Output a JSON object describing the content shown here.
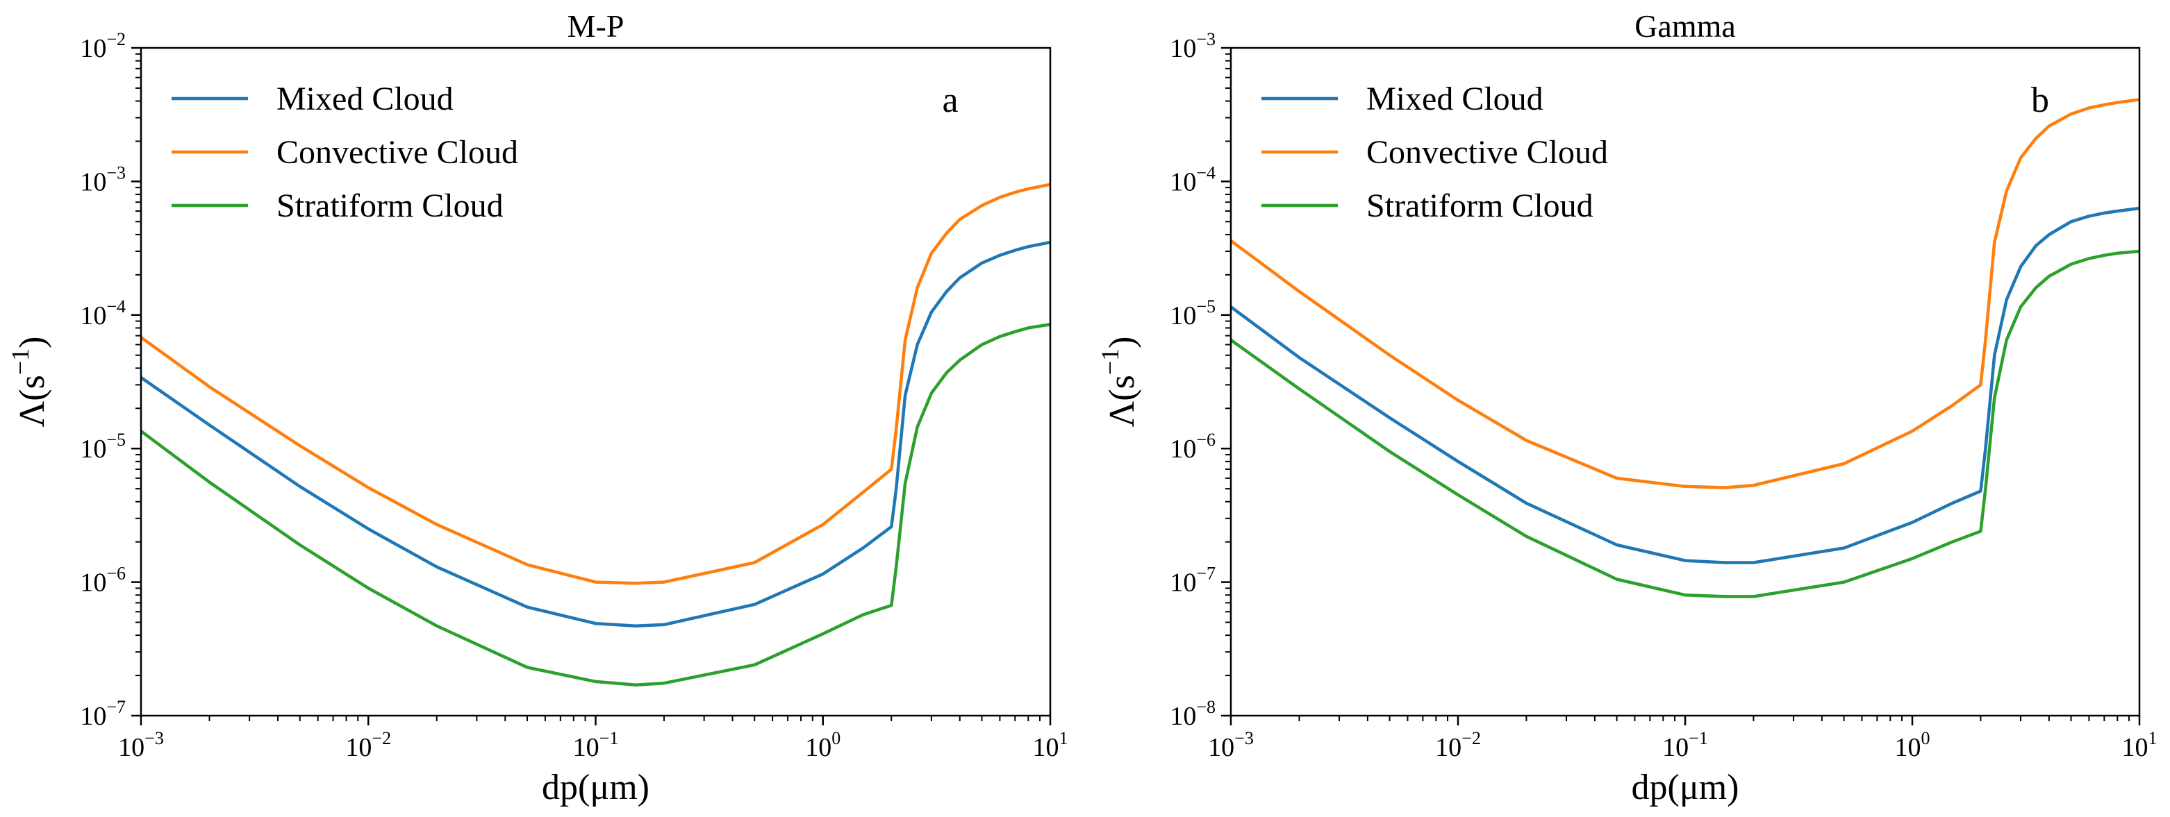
{
  "chart_data": [
    {
      "type": "line",
      "title": "M-P",
      "panel_label": "a",
      "xlabel": "dp(μm)",
      "ylabel_base": "Λ(s",
      "ylabel_sup": "−1",
      "ylabel_close": ")",
      "x_scale": "log",
      "y_scale": "log",
      "xlim": [
        0.001,
        10
      ],
      "ylim": [
        1e-07,
        0.01
      ],
      "x_ticks": [
        {
          "base": "10",
          "exp": "−3"
        },
        {
          "base": "10",
          "exp": "−2"
        },
        {
          "base": "10",
          "exp": "−1"
        },
        {
          "base": "10",
          "exp": "0"
        },
        {
          "base": "10",
          "exp": "1"
        }
      ],
      "y_ticks": [
        {
          "base": "10",
          "exp": "−7"
        },
        {
          "base": "10",
          "exp": "−6"
        },
        {
          "base": "10",
          "exp": "−5"
        },
        {
          "base": "10",
          "exp": "−4"
        },
        {
          "base": "10",
          "exp": "−3"
        },
        {
          "base": "10",
          "exp": "−2"
        }
      ],
      "grid": false,
      "legend_position": "top-left",
      "x": [
        0.001,
        0.002,
        0.005,
        0.01,
        0.02,
        0.05,
        0.1,
        0.15,
        0.2,
        0.5,
        1.0,
        1.5,
        2.0,
        2.1,
        2.3,
        2.6,
        3.0,
        3.5,
        4.0,
        5.0,
        6.0,
        7.0,
        8.0,
        10.0
      ],
      "series": [
        {
          "name": "Mixed Cloud",
          "color": "#1f77b4",
          "values": [
            3.4e-05,
            1.5e-05,
            5.2e-06,
            2.5e-06,
            1.3e-06,
            6.5e-07,
            4.9e-07,
            4.7e-07,
            4.8e-07,
            6.8e-07,
            1.15e-06,
            1.8e-06,
            2.6e-06,
            5e-06,
            2.5e-05,
            6e-05,
            0.000105,
            0.00015,
            0.00019,
            0.000245,
            0.00028,
            0.000305,
            0.000325,
            0.00035
          ]
        },
        {
          "name": "Convective Cloud",
          "color": "#ff7f0e",
          "values": [
            6.8e-05,
            2.9e-05,
            1.05e-05,
            5.1e-06,
            2.7e-06,
            1.35e-06,
            1e-06,
            9.8e-07,
            1e-06,
            1.4e-06,
            2.7e-06,
            4.7e-06,
            7e-06,
            1.4e-05,
            6.5e-05,
            0.00016,
            0.00029,
            0.00041,
            0.00052,
            0.00066,
            0.00076,
            0.00083,
            0.00088,
            0.00095
          ]
        },
        {
          "name": "Stratiform Cloud",
          "color": "#2ca02c",
          "values": [
            1.35e-05,
            5.6e-06,
            1.9e-06,
            9e-07,
            4.7e-07,
            2.3e-07,
            1.8e-07,
            1.7e-07,
            1.75e-07,
            2.4e-07,
            4.1e-07,
            5.7e-07,
            6.7e-07,
            1.3e-06,
            5.5e-06,
            1.45e-05,
            2.6e-05,
            3.7e-05,
            4.6e-05,
            6e-05,
            6.9e-05,
            7.5e-05,
            8e-05,
            8.5e-05
          ]
        }
      ]
    },
    {
      "type": "line",
      "title": "Gamma",
      "panel_label": "b",
      "xlabel": "dp(μm)",
      "ylabel_base": "Λ(s",
      "ylabel_sup": "−1",
      "ylabel_close": ")",
      "x_scale": "log",
      "y_scale": "log",
      "xlim": [
        0.001,
        10
      ],
      "ylim": [
        1e-08,
        0.001
      ],
      "x_ticks": [
        {
          "base": "10",
          "exp": "−3"
        },
        {
          "base": "10",
          "exp": "−2"
        },
        {
          "base": "10",
          "exp": "−1"
        },
        {
          "base": "10",
          "exp": "0"
        },
        {
          "base": "10",
          "exp": "1"
        }
      ],
      "y_ticks": [
        {
          "base": "10",
          "exp": "−8"
        },
        {
          "base": "10",
          "exp": "−7"
        },
        {
          "base": "10",
          "exp": "−6"
        },
        {
          "base": "10",
          "exp": "−5"
        },
        {
          "base": "10",
          "exp": "−4"
        },
        {
          "base": "10",
          "exp": "−3"
        }
      ],
      "grid": false,
      "legend_position": "top-left",
      "x": [
        0.001,
        0.002,
        0.005,
        0.01,
        0.02,
        0.05,
        0.1,
        0.15,
        0.2,
        0.5,
        1.0,
        1.5,
        2.0,
        2.1,
        2.3,
        2.6,
        3.0,
        3.5,
        4.0,
        5.0,
        6.0,
        7.0,
        8.0,
        10.0
      ],
      "series": [
        {
          "name": "Mixed Cloud",
          "color": "#1f77b4",
          "values": [
            1.15e-05,
            4.8e-06,
            1.7e-06,
            8e-07,
            3.9e-07,
            1.9e-07,
            1.45e-07,
            1.4e-07,
            1.4e-07,
            1.8e-07,
            2.8e-07,
            3.9e-07,
            4.8e-07,
            1e-06,
            5e-06,
            1.3e-05,
            2.3e-05,
            3.3e-05,
            4e-05,
            5e-05,
            5.5e-05,
            5.8e-05,
            6e-05,
            6.3e-05
          ]
        },
        {
          "name": "Convective Cloud",
          "color": "#ff7f0e",
          "values": [
            3.6e-05,
            1.5e-05,
            5e-06,
            2.3e-06,
            1.15e-06,
            6e-07,
            5.2e-07,
            5.1e-07,
            5.3e-07,
            7.7e-07,
            1.35e-06,
            2.1e-06,
            3e-06,
            6.5e-06,
            3.5e-05,
            8.5e-05,
            0.00015,
            0.00021,
            0.00026,
            0.00032,
            0.000355,
            0.000375,
            0.00039,
            0.00041
          ]
        },
        {
          "name": "Stratiform Cloud",
          "color": "#2ca02c",
          "values": [
            6.5e-06,
            2.8e-06,
            9.5e-07,
            4.5e-07,
            2.2e-07,
            1.05e-07,
            8e-08,
            7.8e-08,
            7.8e-08,
            1e-07,
            1.5e-07,
            2e-07,
            2.4e-07,
            5e-07,
            2.4e-06,
            6.5e-06,
            1.15e-05,
            1.6e-05,
            1.95e-05,
            2.4e-05,
            2.65e-05,
            2.8e-05,
            2.9e-05,
            3e-05
          ]
        }
      ]
    }
  ]
}
